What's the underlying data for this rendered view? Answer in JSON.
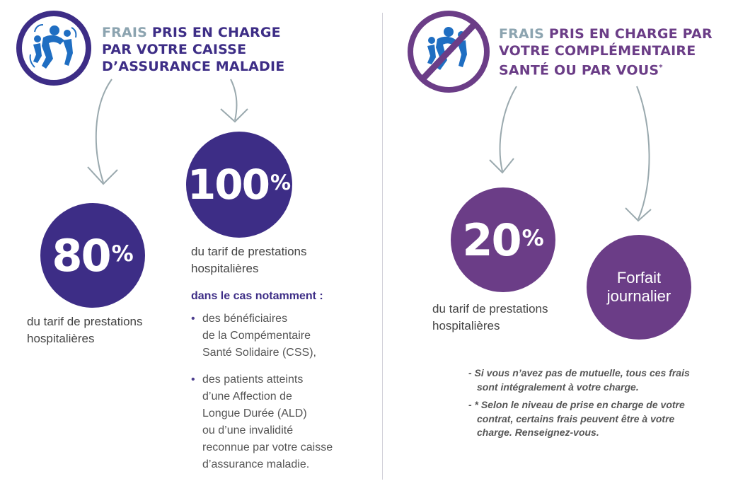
{
  "left": {
    "title": {
      "word1": "FRAIS",
      "rest_line1": " PRIS EN CHARGE",
      "line2": "PAR VOTRE CAISSE",
      "line3": "D’ASSURANCE MALADIE"
    },
    "circle80": {
      "value": "80",
      "unit": "%"
    },
    "desc80": [
      "du tarif de prestations",
      "hospitalières"
    ],
    "circle100": {
      "value": "100",
      "unit": "%"
    },
    "desc100": [
      "du tarif de prestations",
      "hospitalières"
    ],
    "sub_heading": "dans le cas notamment :",
    "bullets": [
      [
        "des bénéficiaires",
        "de la Compémentaire",
        "Santé Solidaire (CSS),"
      ],
      [
        "des patients atteints",
        "d’une Affection de",
        "Longue Durée (ALD)",
        "ou d’une invalidité",
        "reconnue par votre caisse",
        "d’assurance maladie."
      ]
    ]
  },
  "right": {
    "title": {
      "word1": "FRAIS",
      "rest_line1": " PRIS EN CHARGE PAR",
      "line2": "VOTRE COMPLÉMENTAIRE",
      "line3": "SANTÉ  OU PAR VOUS",
      "asterisk": "*"
    },
    "circle20": {
      "value": "20",
      "unit": "%"
    },
    "desc20": [
      "du tarif de prestations",
      "hospitalières"
    ],
    "forfait": [
      "Forfait",
      "journalier"
    ],
    "notes": [
      "- Si vous n’avez pas de mutuelle, tous ces frais sont intégralement à votre charge.",
      "- * Selon le niveau de prise en charge de votre contrat, certains frais peuvent être à votre charge. Renseignez-vous."
    ]
  },
  "colors": {
    "blue": "#3d2d86",
    "purple": "#6b3d87",
    "gray": "#8ca4b0",
    "arrow": "#9aa9ae"
  }
}
